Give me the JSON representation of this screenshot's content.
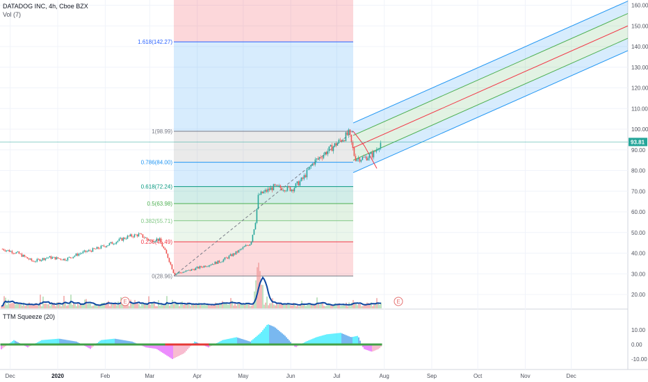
{
  "header": {
    "symbol_line": "DATADOG INC, 4h, Cboe BZX",
    "volume_label": "Vol (7)"
  },
  "indicator": {
    "label": "TTM Squeeze (20)"
  },
  "price_axis": {
    "ticks": [
      "160.00",
      "150.00",
      "140.00",
      "130.00",
      "120.00",
      "110.00",
      "100.00",
      "90.00",
      "80.00",
      "70.00",
      "60.00",
      "50.00",
      "40.00",
      "30.00",
      "20.00"
    ],
    "current_price_label": "93.81"
  },
  "indicator_axis": {
    "ticks": [
      "10.00",
      "0.00",
      "-10.00"
    ]
  },
  "time_axis": {
    "labels": [
      "Dec",
      "2020",
      "Feb",
      "Mar",
      "Apr",
      "May",
      "Jun",
      "Jul",
      "Aug",
      "Sep",
      "Oct",
      "Nov",
      "Dec"
    ]
  },
  "fib_levels": [
    {
      "label": "1.618(142.27)",
      "value": 142.27,
      "color": "#2962ff"
    },
    {
      "label": "1(98.99)",
      "value": 98.99,
      "color": "#787b86"
    },
    {
      "label": "0.786(84.00)",
      "value": 84.0,
      "color": "#2196f3"
    },
    {
      "label": "0.618(72.24)",
      "value": 72.24,
      "color": "#089981"
    },
    {
      "label": "0.5(63.98)",
      "value": 63.98,
      "color": "#4caf50"
    },
    {
      "label": "0.382(55.71)",
      "value": 55.71,
      "color": "#81c784"
    },
    {
      "label": "0.236(45.49)",
      "value": 45.49,
      "color": "#f23645"
    },
    {
      "label": "0(28.96)",
      "value": 28.96,
      "color": "#787b86"
    }
  ],
  "earnings_markers": [
    "E",
    "E"
  ],
  "colors": {
    "up": "#26a69a",
    "down": "#ef5350",
    "volume_ma": "#0d47a1",
    "price_line": "#26a69a",
    "badge_bg": "#26a69a",
    "squeeze_on": "#43a047",
    "squeeze_off": "#e53935"
  },
  "chart_data": {
    "type": "candlestick",
    "title": "DATADOG INC, 4h, Cboe BZX",
    "y_range": [
      10,
      163
    ],
    "x_range": [
      "Dec 2019",
      "Dec 2020"
    ],
    "price_path": [
      [
        "2019-11-25",
        42
      ],
      [
        "2019-12-05",
        40
      ],
      [
        "2019-12-15",
        36
      ],
      [
        "2019-12-25",
        38
      ],
      [
        "2020-01-05",
        37
      ],
      [
        "2020-01-15",
        40
      ],
      [
        "2020-01-25",
        42
      ],
      [
        "2020-02-05",
        45
      ],
      [
        "2020-02-15",
        48
      ],
      [
        "2020-02-22",
        49
      ],
      [
        "2020-03-01",
        46
      ],
      [
        "2020-03-06",
        47
      ],
      [
        "2020-03-12",
        38
      ],
      [
        "2020-03-16",
        30
      ],
      [
        "2020-03-23",
        31
      ],
      [
        "2020-04-01",
        33
      ],
      [
        "2020-04-15",
        36
      ],
      [
        "2020-04-25",
        40
      ],
      [
        "2020-05-05",
        45
      ],
      [
        "2020-05-08",
        55
      ],
      [
        "2020-05-10",
        68
      ],
      [
        "2020-05-20",
        72
      ],
      [
        "2020-06-01",
        71
      ],
      [
        "2020-06-08",
        76
      ],
      [
        "2020-06-15",
        84
      ],
      [
        "2020-06-25",
        90
      ],
      [
        "2020-07-05",
        96
      ],
      [
        "2020-07-08",
        98
      ],
      [
        "2020-07-12",
        86
      ],
      [
        "2020-07-18",
        86
      ],
      [
        "2020-07-24",
        88
      ],
      [
        "2020-07-29",
        93.81
      ]
    ],
    "current_price": 93.81,
    "volume_ma_peak_date": "2020-05-10",
    "pitchfork": {
      "median_start": [
        "2020-07-07",
        98.99
      ],
      "median_end": [
        "2020-12-31",
        158
      ],
      "bands": [
        "inner green",
        "outer blue"
      ]
    },
    "indicator": {
      "name": "TTM Squeeze (20)",
      "range": [
        -12,
        16
      ],
      "peak": 14,
      "trough": -10
    }
  }
}
